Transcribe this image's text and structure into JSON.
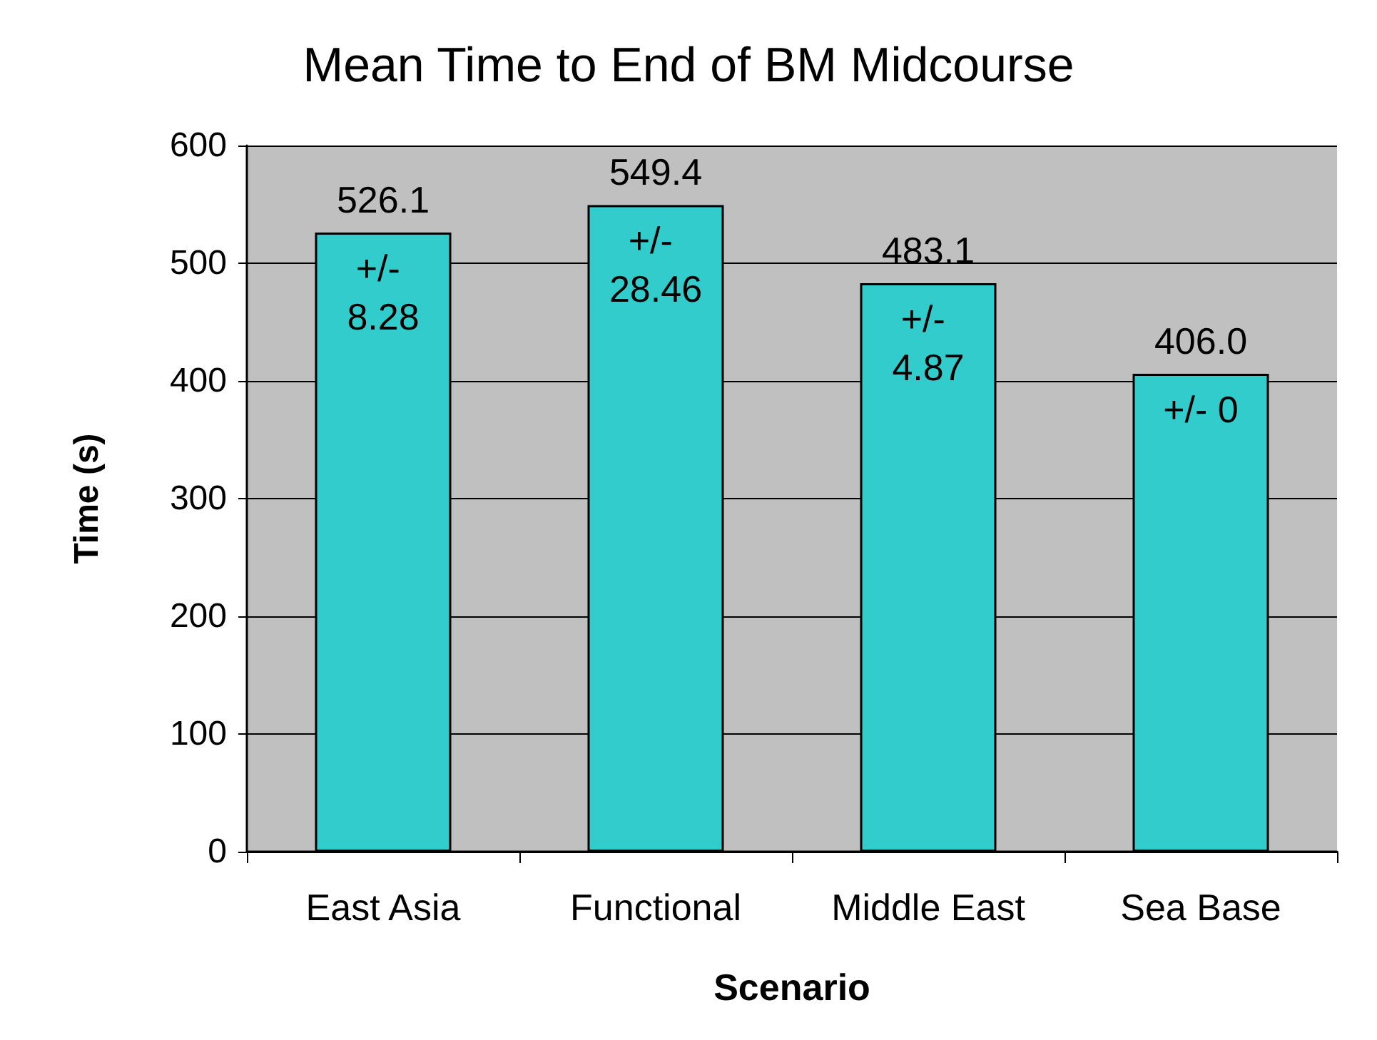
{
  "chart_data": {
    "type": "bar",
    "title": "Mean Time to End of BM Midcourse",
    "xlabel": "Scenario",
    "ylabel": "Time (s)",
    "categories": [
      "East Asia",
      "Functional",
      "Middle East",
      "Sea Base"
    ],
    "values": [
      526.1,
      549.4,
      483.1,
      406.0
    ],
    "value_labels": [
      "526.1",
      "549.4",
      "483.1",
      "406.0"
    ],
    "color": "#33cccc",
    "ylim": [
      0,
      600
    ],
    "yticks": [
      0,
      100,
      200,
      300,
      400,
      500,
      600
    ],
    "grid": "y",
    "annotations": [
      {
        "text": "+/- 8.28",
        "x": "East Asia",
        "y": 526.1
      },
      {
        "text": "+/- 28.46",
        "x": "Functional",
        "y": 549.4
      },
      {
        "text": "+/- 4.87",
        "x": "Middle East",
        "y": 483.1
      },
      {
        "text": "+/- 0",
        "x": "Sea Base",
        "y": 406.0
      }
    ]
  }
}
